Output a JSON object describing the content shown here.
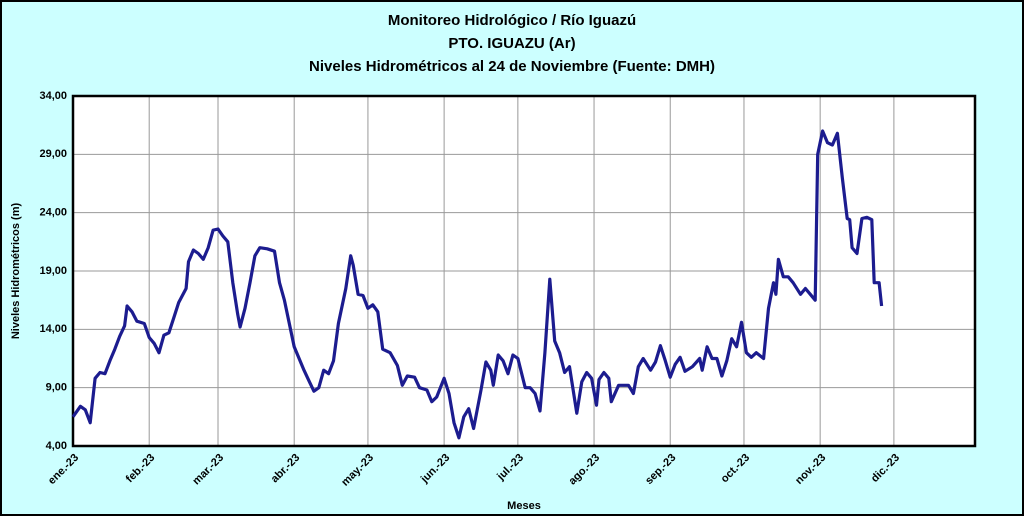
{
  "chart_data": {
    "type": "line",
    "title": [
      "Monitoreo Hidrológico / Río Iguazú",
      "PTO.  IGUAZU (Ar)",
      "Niveles Hidrométricos  al 24 de Noviembre (Fuente: DMH)"
    ],
    "x_label": "Meses",
    "y_label": "Niveles Hidrométricos (m)",
    "xlim": [
      0,
      367
    ],
    "ylim": [
      4,
      34
    ],
    "xticks": [
      {
        "value": 0,
        "label": "ene.-23"
      },
      {
        "value": 31,
        "label": "feb.-23"
      },
      {
        "value": 59,
        "label": "mar.-23"
      },
      {
        "value": 90,
        "label": "abr.-23"
      },
      {
        "value": 120,
        "label": "may.-23"
      },
      {
        "value": 151,
        "label": "jun.-23"
      },
      {
        "value": 181,
        "label": "jul.-23"
      },
      {
        "value": 212,
        "label": "ago.-23"
      },
      {
        "value": 243,
        "label": "sep.-23"
      },
      {
        "value": 273,
        "label": "oct.-23"
      },
      {
        "value": 304,
        "label": "nov.-23"
      },
      {
        "value": 334,
        "label": "dic.-23"
      }
    ],
    "yticks": [
      {
        "value": 4,
        "label": "4,00"
      },
      {
        "value": 9,
        "label": "9,00"
      },
      {
        "value": 14,
        "label": "14,00"
      },
      {
        "value": 19,
        "label": "19,00"
      },
      {
        "value": 24,
        "label": "24,00"
      },
      {
        "value": 29,
        "label": "29,00"
      },
      {
        "value": 34,
        "label": "34,00"
      }
    ],
    "grid": true,
    "x": [
      0,
      3,
      5,
      7,
      9,
      11,
      13,
      15,
      17,
      19,
      21,
      22,
      24,
      26,
      29,
      31,
      33,
      35,
      37,
      39,
      41,
      43,
      46,
      47,
      49,
      51,
      53,
      55,
      57,
      59,
      61,
      63,
      65,
      67,
      68,
      70,
      72,
      74,
      76,
      79,
      82,
      84,
      86,
      88,
      90,
      92,
      94,
      96,
      98,
      100,
      102,
      104,
      106,
      108,
      111,
      113,
      114,
      116,
      118,
      120,
      122,
      124,
      126,
      129,
      132,
      134,
      136,
      139,
      141,
      144,
      146,
      148,
      151,
      153,
      155,
      157,
      159,
      161,
      163,
      166,
      168,
      170,
      171,
      173,
      175,
      177,
      179,
      181,
      184,
      186,
      188,
      190,
      192,
      194,
      196,
      198,
      200,
      202,
      205,
      207,
      209,
      211,
      213,
      214,
      216,
      218,
      219,
      222,
      226,
      228,
      230,
      232,
      235,
      237,
      239,
      241,
      243,
      245,
      247,
      249,
      252,
      255,
      256,
      258,
      260,
      262,
      264,
      266,
      268,
      270,
      272,
      274,
      276,
      278,
      281,
      283,
      285,
      286,
      287,
      289,
      291,
      293,
      296,
      298,
      300,
      302,
      303,
      305,
      307,
      309,
      311,
      313,
      315,
      316,
      317,
      319,
      321,
      323,
      325,
      326,
      328,
      329
    ],
    "series": [
      {
        "name": "Nivel",
        "color": "#1c1c8f",
        "values": [
          6.5,
          7.4,
          7.1,
          6.0,
          9.8,
          10.3,
          10.2,
          11.3,
          12.3,
          13.4,
          14.3,
          16.0,
          15.5,
          14.7,
          14.5,
          13.3,
          12.8,
          12.0,
          13.5,
          13.7,
          15.0,
          16.3,
          17.5,
          19.8,
          20.8,
          20.5,
          20.0,
          21.0,
          22.5,
          22.6,
          22.0,
          21.5,
          18.0,
          15.3,
          14.2,
          15.8,
          18.0,
          20.3,
          21.0,
          20.9,
          20.7,
          18.0,
          16.5,
          14.5,
          12.5,
          11.5,
          10.5,
          9.6,
          8.7,
          9.0,
          10.5,
          10.2,
          11.3,
          14.5,
          17.5,
          20.3,
          19.5,
          17.0,
          16.9,
          15.8,
          16.1,
          15.5,
          12.3,
          12.0,
          10.9,
          9.2,
          10.0,
          9.9,
          9.0,
          8.8,
          7.8,
          8.2,
          9.8,
          8.5,
          6.0,
          4.7,
          6.5,
          7.2,
          5.5,
          8.8,
          11.2,
          10.5,
          9.2,
          11.8,
          11.3,
          10.2,
          11.8,
          11.5,
          9.0,
          9.0,
          8.5,
          7.0,
          12.0,
          18.3,
          13.0,
          12.0,
          10.3,
          10.8,
          6.8,
          9.5,
          10.3,
          9.8,
          7.5,
          9.7,
          10.3,
          9.8,
          7.8,
          9.2,
          9.2,
          8.5,
          10.8,
          11.5,
          10.5,
          11.2,
          12.6,
          11.3,
          9.9,
          11.0,
          11.6,
          10.4,
          10.8,
          11.5,
          10.5,
          12.5,
          11.5,
          11.5,
          10.0,
          11.3,
          13.2,
          12.5,
          14.6,
          12.0,
          11.6,
          12.0,
          11.5,
          15.8,
          18.0,
          17.0,
          20.0,
          18.5,
          18.5,
          18.0,
          17.0,
          17.5,
          17.0,
          16.5,
          29.0,
          31.0,
          30.0,
          29.8,
          30.8,
          27.0,
          23.5,
          23.4,
          21.0,
          20.5,
          23.5,
          23.6,
          23.4,
          18.0,
          18.0,
          16.0
        ]
      }
    ]
  }
}
